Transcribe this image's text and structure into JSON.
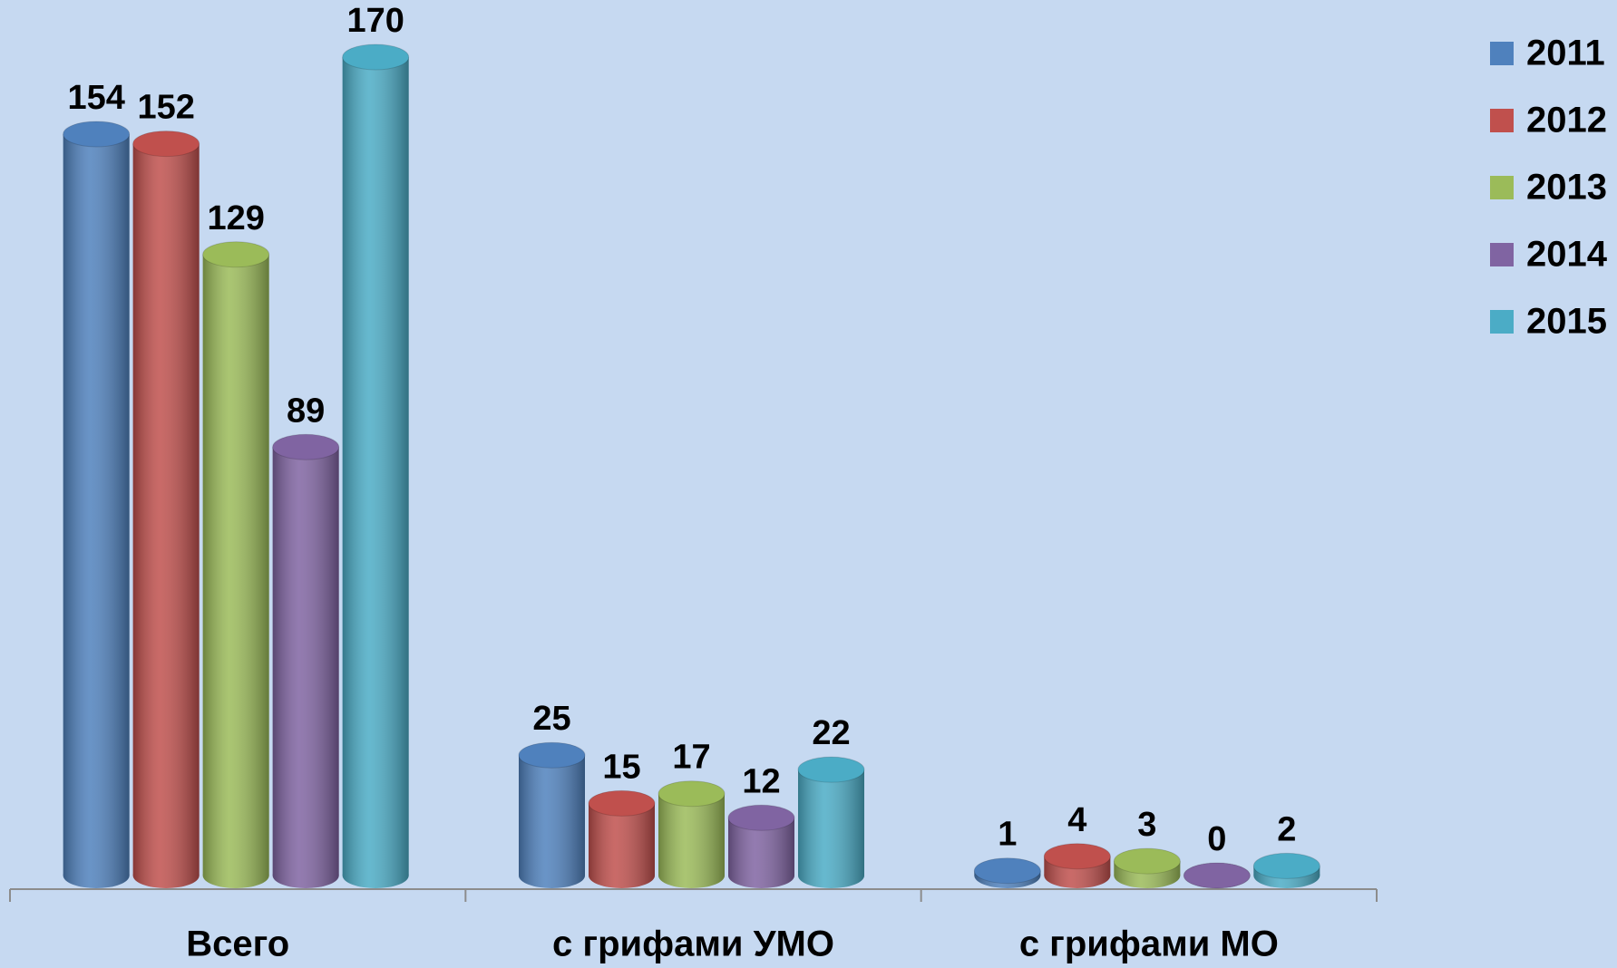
{
  "chart_data": {
    "type": "bar",
    "categories": [
      "Всего",
      "с грифами УМО",
      "с грифами МО"
    ],
    "series": [
      {
        "name": "2011",
        "color": "#4f81bd",
        "values": [
          154,
          25,
          1
        ]
      },
      {
        "name": "2012",
        "color": "#c0504d",
        "values": [
          152,
          15,
          4
        ]
      },
      {
        "name": "2013",
        "color": "#9bbb59",
        "values": [
          129,
          17,
          3
        ]
      },
      {
        "name": "2014",
        "color": "#8064a2",
        "values": [
          89,
          12,
          0
        ]
      },
      {
        "name": "2015",
        "color": "#4bacc6",
        "values": [
          170,
          22,
          2
        ]
      }
    ],
    "legend": "right"
  }
}
